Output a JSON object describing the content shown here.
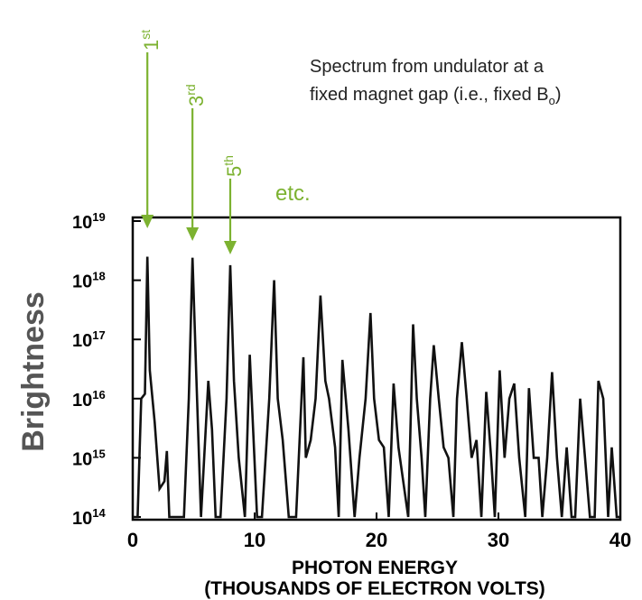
{
  "chart_data": {
    "type": "line",
    "ylabel": "Brightness",
    "xlabel_line1": "PHOTON ENERGY",
    "xlabel_line2": "(THOUSANDS OF ELECTRON VOLTS)",
    "xlim": [
      0,
      40
    ],
    "ylim_log10": [
      14,
      19
    ],
    "yscale": "log",
    "grid": false,
    "x_ticks": [
      "0",
      "10",
      "20",
      "30",
      "40"
    ],
    "y_ticks": [
      {
        "base": "10",
        "exp": "19"
      },
      {
        "base": "10",
        "exp": "18"
      },
      {
        "base": "10",
        "exp": "17"
      },
      {
        "base": "10",
        "exp": "16"
      },
      {
        "base": "10",
        "exp": "15"
      },
      {
        "base": "10",
        "exp": "14"
      }
    ],
    "series": [
      {
        "x": [
          0.0,
          0.4,
          0.7,
          1.0,
          1.2,
          1.4,
          1.8,
          2.2,
          2.6,
          2.8,
          3.0,
          4.2,
          4.6,
          4.9,
          5.2,
          5.6,
          6.2,
          6.5,
          6.8,
          7.2,
          7.7,
          8.0,
          8.3,
          8.7,
          9.2,
          9.6,
          10.2,
          10.6,
          11.2,
          11.6,
          11.9,
          12.3,
          12.8,
          13.4,
          14.0,
          14.2,
          14.6,
          15.0,
          15.4,
          15.8,
          16.1,
          16.6,
          16.9,
          17.2,
          17.7,
          18.2,
          18.6,
          19.1,
          19.5,
          19.8,
          20.2,
          20.6,
          21.0,
          21.4,
          21.8,
          22.6,
          23.0,
          23.3,
          23.7,
          24.0,
          24.4,
          24.7,
          25.1,
          25.5,
          25.9,
          26.3,
          26.6,
          27.0,
          27.4,
          27.8,
          28.2,
          28.6,
          29.0,
          29.4,
          29.7,
          30.1,
          30.5,
          30.9,
          31.3,
          31.7,
          32.2,
          32.5,
          32.9,
          33.3,
          33.6,
          34.0,
          34.4,
          34.8,
          35.2,
          35.6,
          36.0,
          36.3,
          36.7,
          37.1,
          37.5,
          37.9,
          38.2,
          38.6,
          39.0,
          39.3,
          39.7,
          40.0
        ],
        "y": [
          100000000000000.0,
          100000000000000.0,
          1e+16,
          1.2e+16,
          2.5e+18,
          3e+16,
          4000000000000000.0,
          300000000000000.0,
          400000000000000.0,
          1300000000000000.0,
          100000000000000.0,
          100000000000000.0,
          1e+16,
          2.4e+18,
          3e+16,
          100000000000000.0,
          2e+16,
          3000000000000000.0,
          100000000000000.0,
          100000000000000.0,
          1e+16,
          1.8e+18,
          2e+16,
          1000000000000000.0,
          100000000000000.0,
          5.5e+16,
          100000000000000.0,
          100000000000000.0,
          1e+16,
          1e+18,
          1e+16,
          2000000000000000.0,
          100000000000000.0,
          100000000000000.0,
          5e+16,
          1000000000000000.0,
          2000000000000000.0,
          1e+16,
          5.5e+17,
          2e+16,
          1e+16,
          1500000000000000.0,
          100000000000000.0,
          4.5e+16,
          3000000000000000.0,
          100000000000000.0,
          1000000000000000.0,
          1e+16,
          2.8e+17,
          1e+16,
          2000000000000000.0,
          1500000000000000.0,
          100000000000000.0,
          1.8e+16,
          1500000000000000.0,
          100000000000000.0,
          1.8e+17,
          1e+16,
          1000000000000000.0,
          100000000000000.0,
          1e+16,
          8e+16,
          1e+16,
          1500000000000000.0,
          1000000000000000.0,
          100000000000000.0,
          1e+16,
          9e+16,
          1e+16,
          1000000000000000.0,
          2000000000000000.0,
          100000000000000.0,
          1.3e+16,
          1000000000000000.0,
          100000000000000.0,
          3e+16,
          1000000000000000.0,
          1e+16,
          1.8e+16,
          1000000000000000.0,
          100000000000000.0,
          1.5e+16,
          1000000000000000.0,
          1000000000000000.0,
          100000000000000.0,
          1000000000000000.0,
          2.8e+16,
          1000000000000000.0,
          100000000000000.0,
          1500000000000000.0,
          100000000000000.0,
          100000000000000.0,
          1e+16,
          1000000000000000.0,
          100000000000000.0,
          100000000000000.0,
          2e+16,
          1e+16,
          100000000000000.0,
          1500000000000000.0,
          100000000000000.0,
          100000000000000.0
        ]
      }
    ],
    "annotations": {
      "harmonics": [
        {
          "label_num": "1",
          "label_sup": "st",
          "x": 1.2,
          "y": 2.5e+18
        },
        {
          "label_num": "3",
          "label_sup": "rd",
          "x": 4.9,
          "y": 2.4e+18
        },
        {
          "label_num": "5",
          "label_sup": "th",
          "x": 8.0,
          "y": 1.8e+18
        }
      ],
      "etc_label": "etc.",
      "note_line1": "Spectrum from undulator at a",
      "note_line2_main": "fixed magnet gap (i.e., fixed B",
      "note_line2_sub": "o",
      "note_line2_end": ")",
      "color": "#7cb230"
    }
  }
}
